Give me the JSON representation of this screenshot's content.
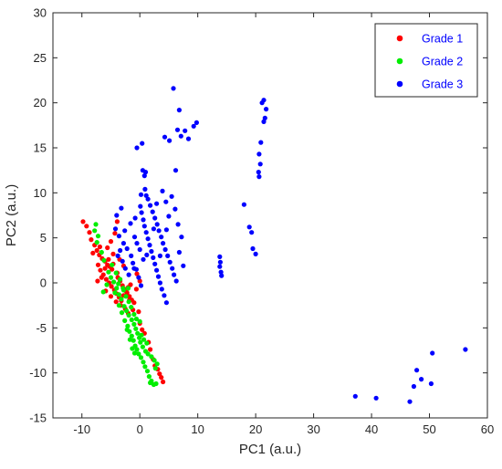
{
  "chart_data": {
    "type": "scatter",
    "title": "",
    "xlabel": "PC1 (a.u.)",
    "ylabel": "PC2 (a.u.)",
    "xlim": [
      -15,
      60
    ],
    "ylim": [
      -15,
      30
    ],
    "xticks": [
      -10,
      0,
      10,
      20,
      30,
      40,
      50,
      60
    ],
    "yticks": [
      -15,
      -10,
      -5,
      0,
      5,
      10,
      15,
      20,
      25,
      30
    ],
    "grid": false,
    "legend_position": "top-right",
    "series": [
      {
        "name": "Grade 1",
        "color": "#ff0000",
        "points": [
          [
            -9.8,
            6.8
          ],
          [
            -9.2,
            6.3
          ],
          [
            -8.7,
            5.6
          ],
          [
            -8.4,
            4.8
          ],
          [
            -7.8,
            4.2
          ],
          [
            -7.4,
            3.6
          ],
          [
            -7.0,
            3.1
          ],
          [
            -6.5,
            2.7
          ],
          [
            -6.0,
            2.4
          ],
          [
            -5.6,
            2.0
          ],
          [
            -5.2,
            1.8
          ],
          [
            -4.8,
            1.5
          ],
          [
            -7.2,
            2.0
          ],
          [
            -6.8,
            1.4
          ],
          [
            -6.3,
            0.9
          ],
          [
            -5.8,
            0.4
          ],
          [
            -5.3,
            0.0
          ],
          [
            -4.9,
            -0.4
          ],
          [
            -4.4,
            -0.8
          ],
          [
            -4.0,
            -1.2
          ],
          [
            -3.6,
            -1.6
          ],
          [
            -3.2,
            -2.0
          ],
          [
            -2.8,
            -1.4
          ],
          [
            -2.4,
            -0.9
          ],
          [
            -2.0,
            -0.5
          ],
          [
            -1.6,
            -0.2
          ],
          [
            -3.8,
            0.6
          ],
          [
            -3.4,
            0.2
          ],
          [
            -3.0,
            -0.3
          ],
          [
            -2.6,
            -0.7
          ],
          [
            -2.2,
            -1.1
          ],
          [
            -1.8,
            -1.5
          ],
          [
            -1.4,
            -1.9
          ],
          [
            -1.0,
            -2.2
          ],
          [
            -3.9,
            6.8
          ],
          [
            -4.3,
            5.5
          ],
          [
            -5.0,
            4.6
          ],
          [
            -5.6,
            3.9
          ],
          [
            -4.6,
            3.2
          ],
          [
            -3.5,
            2.6
          ],
          [
            -2.8,
            1.9
          ],
          [
            -5.4,
            2.6
          ],
          [
            -6.0,
            1.6
          ],
          [
            -6.6,
            0.6
          ],
          [
            -7.3,
            0.2
          ],
          [
            -5.9,
            -0.9
          ],
          [
            -5.0,
            -1.5
          ],
          [
            -4.1,
            -2.1
          ],
          [
            -3.3,
            -2.5
          ],
          [
            -2.5,
            -2.9
          ],
          [
            -1.8,
            -1.9
          ],
          [
            -0.6,
            -0.7
          ],
          [
            0.0,
            0.2
          ],
          [
            -0.5,
            1.0
          ],
          [
            -0.2,
            -3.2
          ],
          [
            0.0,
            -4.5
          ],
          [
            0.4,
            -5.2
          ],
          [
            0.8,
            -5.6
          ],
          [
            1.5,
            -6.6
          ],
          [
            1.8,
            -7.4
          ],
          [
            2.3,
            -8.5
          ],
          [
            2.6,
            -9.2
          ],
          [
            3.1,
            -9.6
          ],
          [
            3.4,
            -10.1
          ],
          [
            3.7,
            -10.5
          ],
          [
            4.0,
            -11.0
          ],
          [
            -1.2,
            -3.0
          ],
          [
            -2.0,
            -3.4
          ],
          [
            -4.6,
            2.1
          ],
          [
            -3.9,
            1.1
          ],
          [
            -6.9,
            4.0
          ],
          [
            -8.1,
            3.3
          ]
        ]
      },
      {
        "name": "Grade 2",
        "color": "#00ee00",
        "points": [
          [
            -7.6,
            6.5
          ],
          [
            -7.8,
            5.8
          ],
          [
            -7.2,
            5.2
          ],
          [
            -7.4,
            4.5
          ],
          [
            -6.6,
            3.4
          ],
          [
            -6.2,
            2.5
          ],
          [
            -5.4,
            1.2
          ],
          [
            -5.0,
            0.6
          ],
          [
            -4.5,
            0.1
          ],
          [
            -4.0,
            -0.6
          ],
          [
            -3.6,
            -1.3
          ],
          [
            -3.2,
            -1.8
          ],
          [
            -2.7,
            -2.6
          ],
          [
            -2.3,
            -3.1
          ],
          [
            -1.9,
            -3.6
          ],
          [
            -1.4,
            -4.1
          ],
          [
            -1.0,
            -4.6
          ],
          [
            -0.7,
            -5.1
          ],
          [
            -2.1,
            -4.8
          ],
          [
            -1.8,
            -5.4
          ],
          [
            -1.4,
            -5.9
          ],
          [
            -1.1,
            -6.4
          ],
          [
            -0.8,
            -7.0
          ],
          [
            -0.5,
            -7.4
          ],
          [
            -0.2,
            -7.9
          ],
          [
            0.2,
            -8.3
          ],
          [
            0.6,
            -8.8
          ],
          [
            0.9,
            -9.3
          ],
          [
            1.3,
            -9.8
          ],
          [
            1.6,
            -10.4
          ],
          [
            2.0,
            -10.9
          ],
          [
            2.4,
            -11.3
          ],
          [
            2.8,
            -11.2
          ],
          [
            1.8,
            -11.1
          ],
          [
            -2.8,
            -0.8
          ],
          [
            -2.4,
            -1.5
          ],
          [
            -1.9,
            -2.1
          ],
          [
            -1.5,
            -2.7
          ],
          [
            -3.1,
            -3.3
          ],
          [
            -2.6,
            -4.2
          ],
          [
            -2.2,
            -5.2
          ],
          [
            -1.7,
            -6.3
          ],
          [
            -1.3,
            -7.3
          ],
          [
            -0.9,
            -7.8
          ],
          [
            0.1,
            -6.6
          ],
          [
            0.5,
            -7.1
          ],
          [
            1.0,
            -7.6
          ],
          [
            1.4,
            -7.9
          ],
          [
            2.0,
            -8.2
          ],
          [
            2.5,
            -8.6
          ],
          [
            3.0,
            -9.0
          ],
          [
            2.7,
            -9.5
          ],
          [
            -0.4,
            -5.6
          ],
          [
            -0.1,
            -6.1
          ],
          [
            0.3,
            -5.8
          ],
          [
            0.7,
            -6.3
          ],
          [
            -3.4,
            0.4
          ],
          [
            -4.1,
            1.1
          ],
          [
            -3.7,
            -0.1
          ],
          [
            -2.9,
            -0.6
          ],
          [
            -4.8,
            2.0
          ],
          [
            -4.3,
            -1.1
          ],
          [
            -1.0,
            -3.5
          ],
          [
            -0.6,
            -4.0
          ],
          [
            0.0,
            -4.3
          ],
          [
            -3.6,
            -2.5
          ],
          [
            -2.0,
            -0.6
          ],
          [
            1.2,
            -6.7
          ],
          [
            -5.7,
            -0.2
          ],
          [
            -6.3,
            -1.0
          ]
        ]
      },
      {
        "name": "Grade 3",
        "color": "#0000ff",
        "points": [
          [
            5.8,
            21.6
          ],
          [
            6.8,
            19.2
          ],
          [
            6.5,
            17.0
          ],
          [
            7.1,
            16.3
          ],
          [
            7.8,
            16.9
          ],
          [
            8.4,
            16.0
          ],
          [
            9.3,
            17.4
          ],
          [
            9.8,
            17.8
          ],
          [
            4.3,
            16.2
          ],
          [
            5.1,
            15.8
          ],
          [
            6.2,
            12.5
          ],
          [
            -0.5,
            15.0
          ],
          [
            0.4,
            15.5
          ],
          [
            0.5,
            12.5
          ],
          [
            0.8,
            11.9
          ],
          [
            0.9,
            10.4
          ],
          [
            1.1,
            9.7
          ],
          [
            1.4,
            9.3
          ],
          [
            1.8,
            8.6
          ],
          [
            2.2,
            7.9
          ],
          [
            2.6,
            7.2
          ],
          [
            3.0,
            6.5
          ],
          [
            3.3,
            5.8
          ],
          [
            3.7,
            5.1
          ],
          [
            4.0,
            4.4
          ],
          [
            4.4,
            3.7
          ],
          [
            4.8,
            3.0
          ],
          [
            5.2,
            2.3
          ],
          [
            5.6,
            1.6
          ],
          [
            5.9,
            0.9
          ],
          [
            6.3,
            0.2
          ],
          [
            0.1,
            8.5
          ],
          [
            0.3,
            7.8
          ],
          [
            0.6,
            7.0
          ],
          [
            0.8,
            6.3
          ],
          [
            1.1,
            5.6
          ],
          [
            1.4,
            4.9
          ],
          [
            1.7,
            4.2
          ],
          [
            2.0,
            3.5
          ],
          [
            2.3,
            2.8
          ],
          [
            2.6,
            2.1
          ],
          [
            2.9,
            1.4
          ],
          [
            3.2,
            0.7
          ],
          [
            3.5,
            0.0
          ],
          [
            3.8,
            -0.7
          ],
          [
            4.2,
            -1.4
          ],
          [
            4.6,
            -2.2
          ],
          [
            -4.0,
            7.5
          ],
          [
            -3.2,
            8.3
          ],
          [
            -4.2,
            6.0
          ],
          [
            -3.6,
            5.2
          ],
          [
            -2.8,
            4.4
          ],
          [
            -3.4,
            3.6
          ],
          [
            -2.2,
            3.8
          ],
          [
            -1.5,
            3.0
          ],
          [
            -1.2,
            2.2
          ],
          [
            -0.6,
            1.5
          ],
          [
            -0.2,
            0.6
          ],
          [
            0.2,
            -0.3
          ],
          [
            -1.9,
            0.9
          ],
          [
            -2.5,
            1.6
          ],
          [
            -3.0,
            2.4
          ],
          [
            -3.8,
            3.0
          ],
          [
            -0.9,
            5.1
          ],
          [
            -0.5,
            4.4
          ],
          [
            0.0,
            3.7
          ],
          [
            -1.6,
            6.6
          ],
          [
            -0.8,
            7.2
          ],
          [
            7.5,
            1.9
          ],
          [
            6.8,
            3.4
          ],
          [
            7.2,
            5.1
          ],
          [
            6.6,
            6.5
          ],
          [
            6.1,
            8.2
          ],
          [
            5.5,
            9.6
          ],
          [
            5.0,
            7.4
          ],
          [
            4.5,
            9.0
          ],
          [
            3.9,
            10.2
          ],
          [
            13.8,
            2.9
          ],
          [
            13.9,
            2.3
          ],
          [
            13.8,
            1.8
          ],
          [
            14.0,
            1.2
          ],
          [
            14.1,
            0.8
          ],
          [
            18.0,
            8.7
          ],
          [
            18.9,
            6.2
          ],
          [
            19.3,
            5.6
          ],
          [
            19.5,
            3.8
          ],
          [
            20.0,
            3.2
          ],
          [
            20.6,
            11.8
          ],
          [
            20.5,
            12.3
          ],
          [
            20.8,
            13.2
          ],
          [
            20.6,
            14.3
          ],
          [
            20.9,
            15.6
          ],
          [
            21.4,
            17.9
          ],
          [
            21.6,
            18.3
          ],
          [
            21.8,
            19.3
          ],
          [
            21.1,
            20.0
          ],
          [
            21.4,
            20.3
          ],
          [
            56.2,
            -7.4
          ],
          [
            50.5,
            -7.8
          ],
          [
            47.8,
            -9.7
          ],
          [
            48.6,
            -10.7
          ],
          [
            50.3,
            -11.2
          ],
          [
            47.3,
            -11.5
          ],
          [
            46.6,
            -13.2
          ],
          [
            40.8,
            -12.8
          ],
          [
            37.2,
            -12.6
          ],
          [
            1.2,
            3.1
          ],
          [
            0.6,
            2.6
          ],
          [
            -1.0,
            1.6
          ],
          [
            2.4,
            6.0
          ],
          [
            1.0,
            12.3
          ],
          [
            0.2,
            9.8
          ],
          [
            -2.6,
            5.8
          ],
          [
            3.5,
            3.0
          ],
          [
            4.6,
            5.9
          ],
          [
            2.9,
            8.8
          ]
        ]
      }
    ]
  }
}
